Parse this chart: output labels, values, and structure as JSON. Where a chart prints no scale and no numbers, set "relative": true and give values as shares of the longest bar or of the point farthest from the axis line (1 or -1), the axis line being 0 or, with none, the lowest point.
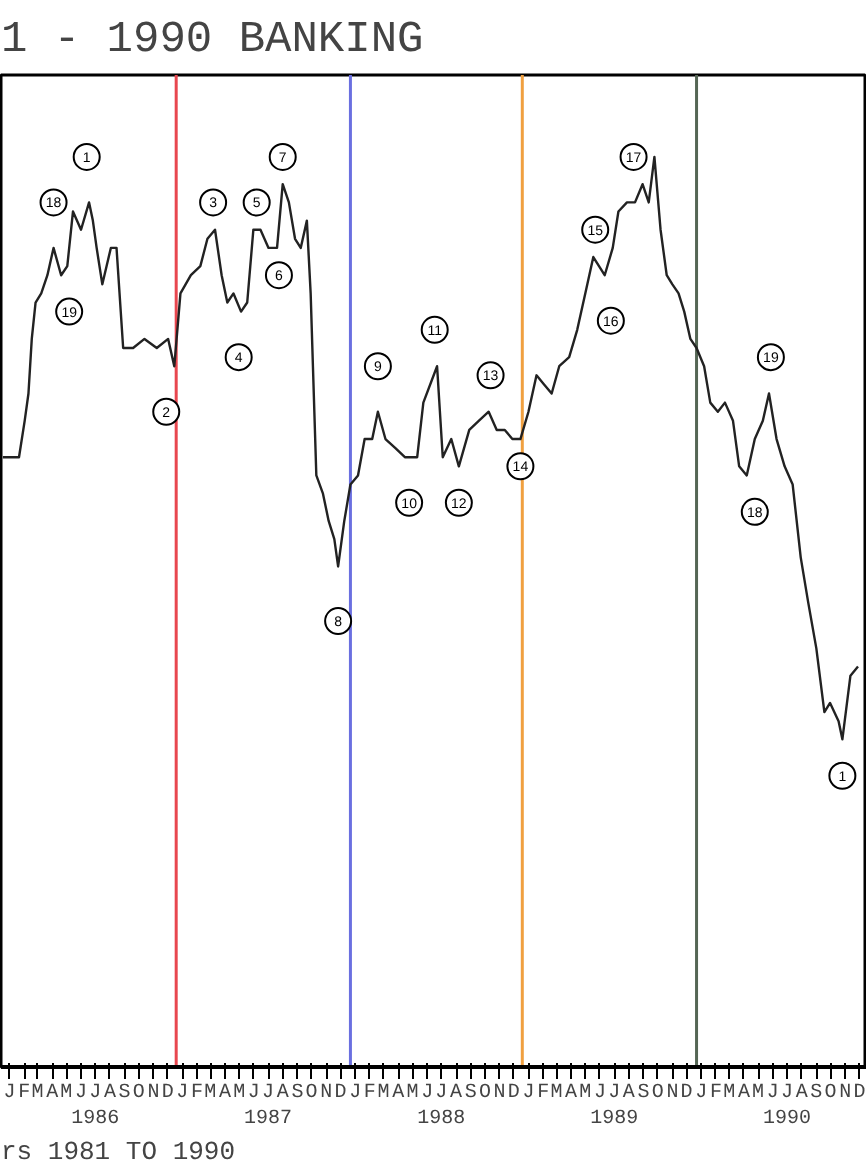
{
  "chart_data": {
    "type": "line",
    "title": "1 - 1990 BANKING",
    "relative": true,
    "grid": false,
    "marker": "none",
    "line_style": "solid",
    "x": [
      "1986-01-01",
      "1986-02-04",
      "1986-02-16",
      "1986-02-24",
      "1986-03-03",
      "1986-03-11",
      "1986-03-23",
      "1986-04-05",
      "1986-04-18",
      "1986-05-04",
      "1986-05-17",
      "1986-05-29",
      "1986-06-15",
      "1986-07-02",
      "1986-07-10",
      "1986-07-18",
      "1986-07-30",
      "1986-08-17",
      "1986-08-29",
      "1986-09-12",
      "1986-10-03",
      "1986-10-27",
      "1986-11-22",
      "1986-12-16",
      "1986-12-29",
      "1987-01-11",
      "1987-02-02",
      "1987-02-22",
      "1987-03-09",
      "1987-03-25",
      "1987-04-08",
      "1987-04-20",
      "1987-05-03",
      "1987-05-19",
      "1987-06-01",
      "1987-06-14",
      "1987-06-29",
      "1987-07-16",
      "1987-08-03",
      "1987-08-15",
      "1987-08-28",
      "1987-09-10",
      "1987-09-22",
      "1987-10-05",
      "1987-10-13",
      "1987-10-25",
      "1987-11-08",
      "1987-11-20",
      "1987-12-02",
      "1987-12-10",
      "1987-12-23",
      "1988-01-05",
      "1988-01-21",
      "1988-02-04",
      "1988-02-20",
      "1988-03-03",
      "1988-03-19",
      "1988-04-09",
      "1988-04-29",
      "1988-05-25",
      "1988-06-07",
      "1988-07-06",
      "1988-07-18",
      "1988-08-05",
      "1988-08-21",
      "1988-09-12",
      "1988-10-02",
      "1988-10-23",
      "1988-11-09",
      "1988-11-26",
      "1988-12-12",
      "1988-12-29",
      "1989-01-15",
      "1989-02-01",
      "1989-02-17",
      "1989-03-05",
      "1989-03-21",
      "1989-04-11",
      "1989-04-28",
      "1989-05-15",
      "1989-06-01",
      "1989-06-13",
      "1989-06-25",
      "1989-07-12",
      "1989-07-24",
      "1989-08-11",
      "1989-08-28",
      "1989-09-13",
      "1989-09-26",
      "1989-10-08",
      "1989-10-21",
      "1989-11-03",
      "1989-11-15",
      "1989-11-28",
      "1989-12-10",
      "1989-12-23",
      "1990-01-05",
      "1990-01-21",
      "1990-02-03",
      "1990-02-19",
      "1990-03-06",
      "1990-03-23",
      "1990-04-05",
      "1990-04-21",
      "1990-05-08",
      "1990-05-25",
      "1990-06-07",
      "1990-06-23",
      "1990-07-10",
      "1990-07-27",
      "1990-08-13",
      "1990-08-29",
      "1990-09-15",
      "1990-10-02",
      "1990-10-14",
      "1990-11-01",
      "1990-11-09",
      "1990-11-26",
      "1990-12-12"
    ],
    "series": [
      {
        "color": "#222222",
        "values": [
          0.67,
          0.67,
          0.71,
          0.74,
          0.8,
          0.84,
          0.85,
          0.87,
          0.9,
          0.87,
          0.88,
          0.94,
          0.92,
          0.95,
          0.93,
          0.9,
          0.86,
          0.9,
          0.9,
          0.79,
          0.79,
          0.8,
          0.79,
          0.8,
          0.77,
          0.85,
          0.87,
          0.88,
          0.91,
          0.92,
          0.87,
          0.84,
          0.85,
          0.83,
          0.84,
          0.92,
          0.92,
          0.9,
          0.9,
          0.97,
          0.95,
          0.91,
          0.9,
          0.93,
          0.85,
          0.65,
          0.63,
          0.6,
          0.58,
          0.55,
          0.6,
          0.64,
          0.65,
          0.69,
          0.69,
          0.72,
          0.69,
          0.68,
          0.67,
          0.67,
          0.73,
          0.77,
          0.67,
          0.69,
          0.66,
          0.7,
          0.71,
          0.72,
          0.7,
          0.7,
          0.69,
          0.69,
          0.72,
          0.76,
          0.75,
          0.74,
          0.77,
          0.78,
          0.81,
          0.85,
          0.89,
          0.88,
          0.87,
          0.9,
          0.94,
          0.95,
          0.95,
          0.97,
          0.95,
          1.0,
          0.92,
          0.87,
          0.86,
          0.85,
          0.83,
          0.8,
          0.79,
          0.77,
          0.73,
          0.72,
          0.73,
          0.71,
          0.66,
          0.65,
          0.69,
          0.71,
          0.74,
          0.69,
          0.66,
          0.64,
          0.56,
          0.51,
          0.46,
          0.39,
          0.4,
          0.38,
          0.36,
          0.43,
          0.44
        ]
      }
    ],
    "xlim": [
      "1985-12-28",
      "1990-12-31"
    ],
    "xticks": [
      {
        "value": "1986-01-15",
        "label": "J"
      },
      {
        "value": "1986-02-15",
        "label": "F"
      },
      {
        "value": "1986-03-15",
        "label": "M"
      },
      {
        "value": "1986-04-15",
        "label": "A"
      },
      {
        "value": "1986-05-15",
        "label": "M"
      },
      {
        "value": "1986-06-15",
        "label": "J"
      },
      {
        "value": "1986-07-15",
        "label": "J\n1986"
      },
      {
        "value": "1986-08-15",
        "label": "A"
      },
      {
        "value": "1986-09-15",
        "label": "S"
      },
      {
        "value": "1986-10-15",
        "label": "O"
      },
      {
        "value": "1986-11-15",
        "label": "N"
      },
      {
        "value": "1986-12-15",
        "label": "D"
      },
      {
        "value": "1987-01-15",
        "label": "J"
      },
      {
        "value": "1987-02-15",
        "label": "F"
      },
      {
        "value": "1987-03-15",
        "label": "M"
      },
      {
        "value": "1987-04-15",
        "label": "A"
      },
      {
        "value": "1987-05-15",
        "label": "M"
      },
      {
        "value": "1987-06-15",
        "label": "J"
      },
      {
        "value": "1987-07-15",
        "label": "J\n1987"
      },
      {
        "value": "1987-08-15",
        "label": "A"
      },
      {
        "value": "1987-09-15",
        "label": "S"
      },
      {
        "value": "1987-10-15",
        "label": "O"
      },
      {
        "value": "1987-11-15",
        "label": "N"
      },
      {
        "value": "1987-12-15",
        "label": "D"
      },
      {
        "value": "1988-01-15",
        "label": "J"
      },
      {
        "value": "1988-02-15",
        "label": "F"
      },
      {
        "value": "1988-03-15",
        "label": "M"
      },
      {
        "value": "1988-04-15",
        "label": "A"
      },
      {
        "value": "1988-05-15",
        "label": "M"
      },
      {
        "value": "1988-06-15",
        "label": "J"
      },
      {
        "value": "1988-07-15",
        "label": "J\n1988"
      },
      {
        "value": "1988-08-15",
        "label": "A"
      },
      {
        "value": "1988-09-15",
        "label": "S"
      },
      {
        "value": "1988-10-15",
        "label": "O"
      },
      {
        "value": "1988-11-15",
        "label": "N"
      },
      {
        "value": "1988-12-15",
        "label": "D"
      },
      {
        "value": "1989-01-15",
        "label": "J"
      },
      {
        "value": "1989-02-15",
        "label": "F"
      },
      {
        "value": "1989-03-15",
        "label": "M"
      },
      {
        "value": "1989-04-15",
        "label": "A"
      },
      {
        "value": "1989-05-15",
        "label": "M"
      },
      {
        "value": "1989-06-15",
        "label": "J"
      },
      {
        "value": "1989-07-15",
        "label": "J\n1989"
      },
      {
        "value": "1989-08-15",
        "label": "A"
      },
      {
        "value": "1989-09-15",
        "label": "S"
      },
      {
        "value": "1989-10-15",
        "label": "O"
      },
      {
        "value": "1989-11-15",
        "label": "N"
      },
      {
        "value": "1989-12-15",
        "label": "D"
      },
      {
        "value": "1990-01-15",
        "label": "J"
      },
      {
        "value": "1990-02-15",
        "label": "F"
      },
      {
        "value": "1990-03-15",
        "label": "M"
      },
      {
        "value": "1990-04-15",
        "label": "A"
      },
      {
        "value": "1990-05-15",
        "label": "M"
      },
      {
        "value": "1990-06-15",
        "label": "J"
      },
      {
        "value": "1990-07-15",
        "label": "J\n1990"
      },
      {
        "value": "1990-08-15",
        "label": "A"
      },
      {
        "value": "1990-09-15",
        "label": "S"
      },
      {
        "value": "1990-10-15",
        "label": "O"
      },
      {
        "value": "1990-11-15",
        "label": "N"
      },
      {
        "value": "1990-12-15",
        "label": "D"
      }
    ],
    "ref_lines": [
      {
        "axis": "x",
        "value": "1987-01-02",
        "color": "#e8474f"
      },
      {
        "axis": "x",
        "value": "1988-01-05",
        "color": "#6a6fe0"
      },
      {
        "axis": "x",
        "value": "1989-01-02",
        "color": "#f0a040"
      },
      {
        "axis": "x",
        "value": "1990-01-05",
        "color": "#556655"
      }
    ],
    "annotations": [
      {
        "text": "1",
        "x": "1986-06-27",
        "y": 1.0
      },
      {
        "text": "18",
        "x": "1986-04-18",
        "y": 0.95
      },
      {
        "text": "19",
        "x": "1986-05-21",
        "y": 0.83
      },
      {
        "text": "2",
        "x": "1986-12-12",
        "y": 0.72
      },
      {
        "text": "3",
        "x": "1987-03-21",
        "y": 0.95
      },
      {
        "text": "4",
        "x": "1987-05-14",
        "y": 0.78
      },
      {
        "text": "5",
        "x": "1987-06-21",
        "y": 0.95
      },
      {
        "text": "6",
        "x": "1987-08-07",
        "y": 0.87
      },
      {
        "text": "7",
        "x": "1987-08-15",
        "y": 1.0
      },
      {
        "text": "8",
        "x": "1987-12-10",
        "y": 0.49
      },
      {
        "text": "9",
        "x": "1988-03-03",
        "y": 0.77
      },
      {
        "text": "10",
        "x": "1988-05-08",
        "y": 0.62
      },
      {
        "text": "11",
        "x": "1988-07-01",
        "y": 0.81
      },
      {
        "text": "12",
        "x": "1988-08-21",
        "y": 0.62
      },
      {
        "text": "13",
        "x": "1988-10-27",
        "y": 0.76
      },
      {
        "text": "14",
        "x": "1988-12-29",
        "y": 0.66
      },
      {
        "text": "15",
        "x": "1989-06-05",
        "y": 0.92
      },
      {
        "text": "16",
        "x": "1989-07-08",
        "y": 0.82
      },
      {
        "text": "17",
        "x": "1989-08-25",
        "y": 1.0
      },
      {
        "text": "18",
        "x": "1990-05-08",
        "y": 0.61
      },
      {
        "text": "19",
        "x": "1990-06-11",
        "y": 0.78
      },
      {
        "text": "1",
        "x": "1990-11-09",
        "y": 0.32
      },
      "rs 1981 TO 1990"
    ]
  }
}
